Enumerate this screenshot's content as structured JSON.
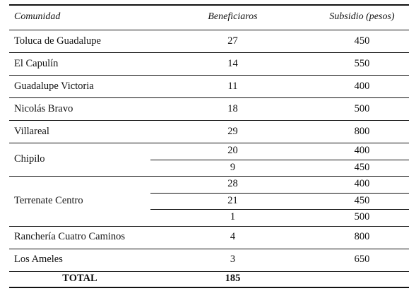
{
  "header": {
    "comunidad": "Comunidad",
    "beneficiarios": "Beneficiaros",
    "subsidio": "Subsidio (pesos)"
  },
  "rows": [
    {
      "comunidad": "Toluca de Guadalupe",
      "entries": [
        {
          "beneficiarios": "27",
          "subsidio": "450"
        }
      ]
    },
    {
      "comunidad": "El Capulín",
      "entries": [
        {
          "beneficiarios": "14",
          "subsidio": "550"
        }
      ]
    },
    {
      "comunidad": "Guadalupe Victoria",
      "entries": [
        {
          "beneficiarios": "11",
          "subsidio": "400"
        }
      ]
    },
    {
      "comunidad": "Nicolás Bravo",
      "entries": [
        {
          "beneficiarios": "18",
          "subsidio": "500"
        }
      ]
    },
    {
      "comunidad": "Villareal",
      "entries": [
        {
          "beneficiarios": "29",
          "subsidio": "800"
        }
      ]
    },
    {
      "comunidad": "Chipilo",
      "entries": [
        {
          "beneficiarios": "20",
          "subsidio": "400"
        },
        {
          "beneficiarios": "9",
          "subsidio": "450"
        }
      ]
    },
    {
      "comunidad": "Terrenate Centro",
      "entries": [
        {
          "beneficiarios": "28",
          "subsidio": "400"
        },
        {
          "beneficiarios": "21",
          "subsidio": "450"
        },
        {
          "beneficiarios": "1",
          "subsidio": "500"
        }
      ]
    },
    {
      "comunidad": "Ranchería Cuatro Caminos",
      "entries": [
        {
          "beneficiarios": "4",
          "subsidio": "800"
        }
      ]
    },
    {
      "comunidad": "Los Ameles",
      "entries": [
        {
          "beneficiarios": "3",
          "subsidio": "650"
        }
      ]
    }
  ],
  "total": {
    "label": "TOTAL",
    "beneficiarios": "185",
    "subsidio": ""
  }
}
